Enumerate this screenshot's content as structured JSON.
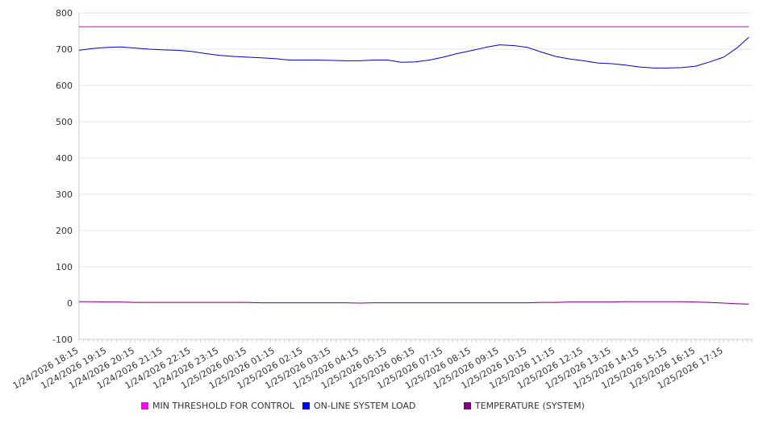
{
  "chart_data": {
    "type": "line",
    "ylim": [
      -100,
      800
    ],
    "yticks": [
      -100,
      0,
      100,
      200,
      300,
      400,
      500,
      600,
      700,
      800
    ],
    "grid": true,
    "legend_placement": "bottom",
    "x_tick_labels": [
      "1/24/2026 18:15",
      "1/24/2026 19:15",
      "1/24/2026 20:15",
      "1/24/2026 21:15",
      "1/24/2026 22:15",
      "1/24/2026 23:15",
      "1/25/2026 00:15",
      "1/25/2026 01:15",
      "1/25/2026 02:15",
      "1/25/2026 03:15",
      "1/25/2026 04:15",
      "1/25/2026 05:15",
      "1/25/2026 06:15",
      "1/25/2026 07:15",
      "1/25/2026 08:15",
      "1/25/2026 09:15",
      "1/25/2026 10:15",
      "1/25/2026 11:15",
      "1/25/2026 12:15",
      "1/25/2026 13:15",
      "1/25/2026 14:15",
      "1/25/2026 15:15",
      "1/25/2026 16:15",
      "1/25/2026 17:15"
    ],
    "x_hours": [
      0,
      0.5,
      1,
      1.5,
      2,
      2.5,
      3,
      3.5,
      4,
      4.5,
      5,
      5.5,
      6,
      6.5,
      7,
      7.5,
      8,
      8.5,
      9,
      9.5,
      10,
      10.5,
      11,
      11.5,
      12,
      12.5,
      13,
      13.5,
      14,
      14.5,
      15,
      15.5,
      16,
      16.5,
      17,
      17.5,
      18,
      18.5,
      19,
      19.5,
      20,
      20.5,
      21,
      21.5,
      22,
      22.5,
      23,
      23.5,
      23.9
    ],
    "series": [
      {
        "name": "MIN THRESHOLD FOR CONTROL",
        "color": "#cc00cc",
        "values": [
          762,
          762,
          762,
          762,
          762,
          762,
          762,
          762,
          762,
          762,
          762,
          762,
          762,
          762,
          762,
          762,
          762,
          762,
          762,
          762,
          762,
          762,
          762,
          762,
          762,
          762,
          762,
          762,
          762,
          762,
          762,
          762,
          762,
          762,
          762,
          762,
          762,
          762,
          762,
          762,
          762,
          762,
          762,
          762,
          762,
          762,
          762,
          762,
          762
        ]
      },
      {
        "name": "ON-LINE SYSTEM LOAD",
        "color": "#0000cc",
        "values": [
          697,
          702,
          705,
          706,
          703,
          700,
          698,
          697,
          694,
          688,
          683,
          680,
          678,
          676,
          674,
          670,
          670,
          670,
          669,
          668,
          668,
          670,
          670,
          664,
          665,
          670,
          678,
          688,
          696,
          705,
          712,
          710,
          705,
          692,
          680,
          673,
          668,
          662,
          660,
          656,
          651,
          648,
          648,
          649,
          653,
          665,
          678,
          705,
          733
        ]
      },
      {
        "name": "TEMPERATURE (SYSTEM)",
        "color": "#800080",
        "values": [
          4,
          4,
          3,
          3,
          2,
          2,
          2,
          2,
          2,
          2,
          2,
          2,
          2,
          1,
          1,
          1,
          1,
          1,
          1,
          1,
          0,
          1,
          1,
          1,
          1,
          1,
          1,
          1,
          1,
          1,
          1,
          1,
          1,
          2,
          2,
          3,
          3,
          3,
          3,
          4,
          4,
          4,
          4,
          4,
          3,
          2,
          0,
          -2,
          -3
        ]
      }
    ]
  }
}
